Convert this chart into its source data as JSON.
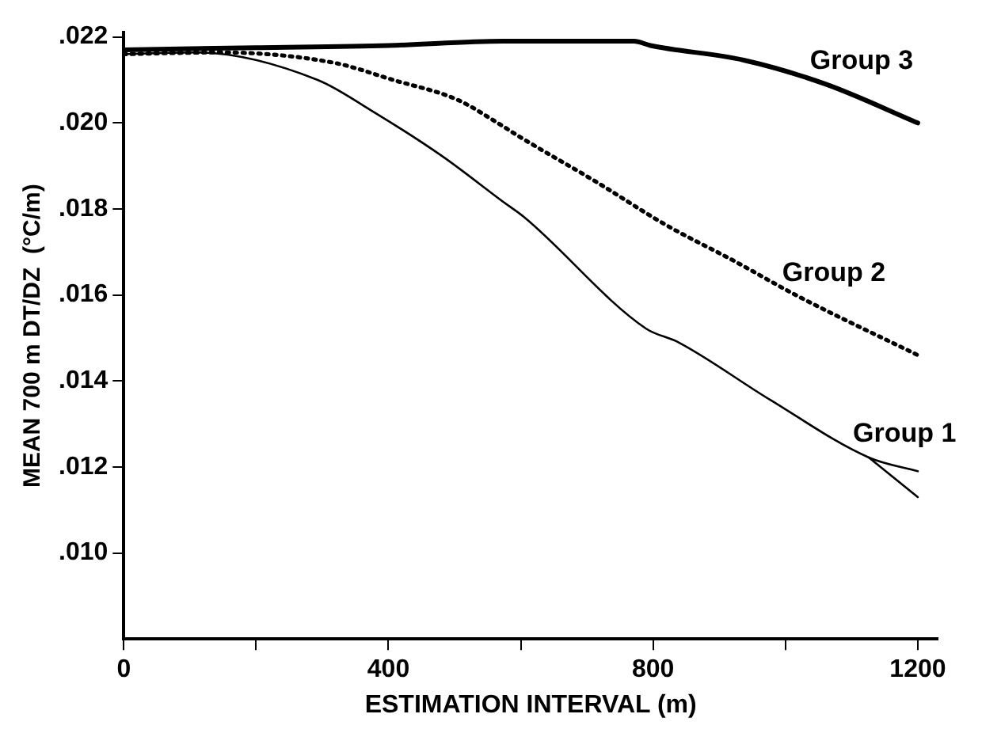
{
  "chart_data": {
    "type": "line",
    "xlabel": "ESTIMATION INTERVAL (m)",
    "ylabel": "MEAN 700 m DT/DZ  (°C/m)",
    "xlim": [
      0,
      1230
    ],
    "xticks": [
      0,
      {
        "value": 200,
        "label": null
      },
      400,
      {
        "value": 600,
        "label": null
      },
      800,
      {
        "value": 1000,
        "label": null
      },
      1200
    ],
    "ylim": [
      0.008,
      0.0221
    ],
    "yticks": [
      {
        "value": 0.01,
        "label": ".010"
      },
      {
        "value": 0.012,
        "label": ".012"
      },
      {
        "value": 0.014,
        "label": ".014"
      },
      {
        "value": 0.016,
        "label": ".016"
      },
      {
        "value": 0.018,
        "label": ".018"
      },
      {
        "value": 0.02,
        "label": ".020"
      },
      {
        "value": 0.022,
        "label": ".022"
      }
    ],
    "grid": false,
    "legend": false,
    "marker": "none",
    "series": [
      {
        "name": "Group 1",
        "color": "#000000",
        "line_style": "solid",
        "x": [
          0,
          109,
          293,
          374,
          481,
          573,
          605,
          789,
          838,
          977,
          1126,
          1200
        ],
        "values": [
          0.0216,
          0.02164,
          0.021,
          0.02029,
          0.01923,
          0.01817,
          0.01781,
          0.01522,
          0.0149,
          0.01356,
          0.01222,
          0.0119
        ]
      },
      {
        "color": "#000000",
        "line_style": "solid",
        "x": [
          1126,
          1200
        ],
        "values": [
          0.01222,
          0.0113
        ]
      },
      {
        "name": "Group 2",
        "color": "#000000",
        "line_style": "dotted",
        "x": [
          0,
          143,
          317,
          407,
          504,
          565,
          598,
          715,
          819,
          920,
          1019,
          1200
        ],
        "values": [
          0.0216,
          0.02164,
          0.0214,
          0.021,
          0.02054,
          0.02,
          0.01968,
          0.01862,
          0.01763,
          0.01681,
          0.01597,
          0.0146
        ]
      },
      {
        "name": "Group 3",
        "color": "#000000",
        "line_style": "solid",
        "x": [
          0,
          200,
          400,
          573,
          771,
          796,
          937,
          1061,
          1200
        ],
        "values": [
          0.0217,
          0.02175,
          0.0218,
          0.0219,
          0.0219,
          0.0218,
          0.02146,
          0.0209,
          0.02
        ]
      }
    ]
  }
}
